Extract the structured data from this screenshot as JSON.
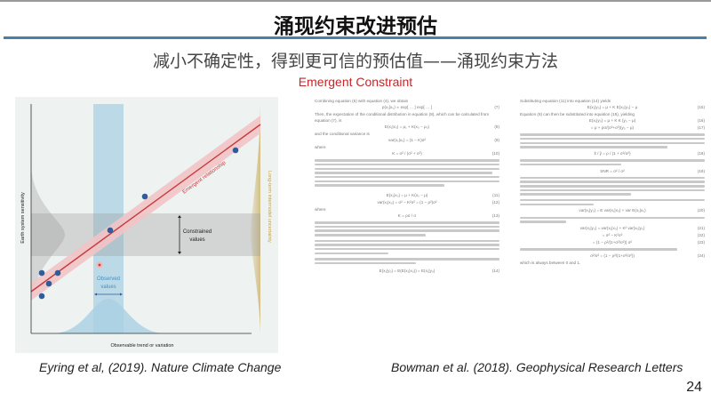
{
  "slide": {
    "title": "涌现约束改进预估",
    "subtitle": "减小不确定性，得到更可信的预估值——涌现约束方法",
    "subtitle_en": "Emergent Constraint",
    "page_number": "24",
    "colors": {
      "rule": "#4a7fa6",
      "accent_red": "#c0282c"
    }
  },
  "figure": {
    "y_axis_label": "Earth system sensitivity",
    "x_axis_label": "Observable trend or variation",
    "line_label": "Emergent relationship",
    "constrained_label_1": "Constrained",
    "constrained_label_2": "values",
    "observed_label_1": "Observed",
    "observed_label_2": "values",
    "right_label": "Long-term intermodel uncertainty",
    "caption": "Eyring et al, (2019). Nature Climate Change",
    "colors": {
      "line": "#c8393a",
      "band": "#f2c4c6",
      "obs_band": "#a9d0e2",
      "points": "#2f5d9c",
      "constrained_band": "#bdbdbd",
      "intermodel": "#cdb36b"
    }
  },
  "paper": {
    "caption": "Bowman et al. (2018). Geophysical Research Letters",
    "left": {
      "l1": "Combining equation (6) with equation (4), we obtain",
      "n7": "(7)",
      "l2": "Then, the expectation of the conditional distribution in equation (8), which can be calculated from equation (7), is",
      "n8": "(8)",
      "l3": "and the conditional variance is",
      "n9": "(9)",
      "where": "where",
      "n10": "(10)",
      "n11": "(11)",
      "n12": "(12)",
      "where2": "where",
      "n13": "(13)",
      "n14": "(14)"
    },
    "right": {
      "l1": "Substituting equation (11) into equation (14) yields",
      "n15": "(15)",
      "l2": "Equation (8) can then be substituted into equation (15), yielding",
      "n16": "(16)",
      "n17": "(17)",
      "n18": "(18)",
      "n19": "(19)",
      "n20": "(20)",
      "n21": "(21)",
      "n22": "(22)",
      "n23": "(23)",
      "n24": "(24)",
      "last": "which is always between 0 and 1."
    }
  }
}
